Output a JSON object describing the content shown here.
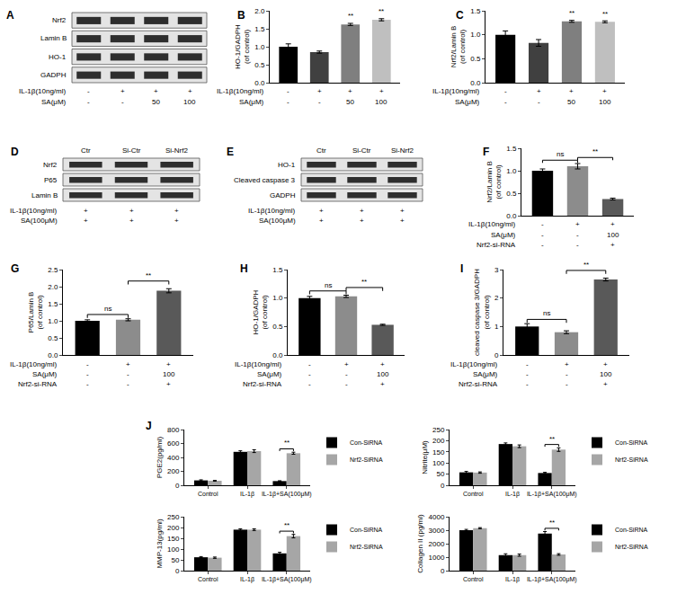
{
  "blots": [
    {
      "panel": "A",
      "rows": [
        "Nrf2",
        "Lamin B",
        "HO-1",
        "GADPH"
      ],
      "conditions": [
        {
          "label": "IL-1β(10ng/ml)",
          "values": [
            "-",
            "+",
            "+",
            "+"
          ]
        },
        {
          "label": "SA(μM)",
          "values": [
            "-",
            "-",
            "50",
            "100"
          ]
        }
      ]
    },
    {
      "panel": "D",
      "lanes": [
        "Ctr",
        "Si-Ctr",
        "Si-Nrf2"
      ],
      "rows": [
        "Nrf2",
        "P65",
        "Lamin B"
      ],
      "conditions": [
        {
          "label": "IL-1β(10ng/ml)",
          "values": [
            "+",
            "+",
            "+"
          ]
        },
        {
          "label": "SA(100μM)",
          "values": [
            "+",
            "+",
            "+"
          ]
        }
      ]
    },
    {
      "panel": "E",
      "lanes": [
        "Ctr",
        "Si-Ctr",
        "Si-Nrf2"
      ],
      "rows": [
        "HO-1",
        "Cleaved caspase 3",
        "GADPH"
      ],
      "conditions": [
        {
          "label": "IL-1β(10ng/ml)",
          "values": [
            "+",
            "+",
            "+"
          ]
        },
        {
          "label": "SA(100μM)",
          "values": [
            "+",
            "+",
            "+"
          ]
        }
      ]
    }
  ],
  "chart_data": [
    {
      "panel": "B",
      "type": "bar",
      "y_label": [
        "HO-1/GADPH",
        "(of control)"
      ],
      "categories": [
        null,
        null,
        null,
        null
      ],
      "values": [
        1.0,
        0.85,
        1.62,
        1.75
      ],
      "errors": [
        0.08,
        0.03,
        0.03,
        0.03
      ],
      "colors": [
        "#000000",
        "#404040",
        "#7f7f7f",
        "#bfbfbf"
      ],
      "ylim": [
        0,
        2
      ],
      "yticks": [
        {
          "value": 0,
          "label": "0.0"
        },
        0.5,
        {
          "value": 1,
          "label": "1.0"
        },
        1.5,
        {
          "value": 2,
          "label": "2.0"
        }
      ],
      "grid": false,
      "tick_labels": "y",
      "conditions": [
        {
          "label": "IL-1β(10ng/ml)",
          "values": [
            "-",
            "+",
            "+",
            "+"
          ]
        },
        {
          "label": "SA(μM)",
          "values": [
            "-",
            "-",
            "50",
            "100"
          ]
        }
      ],
      "significance": [
        {
          "bar": 2,
          "label": "**"
        },
        {
          "bar": 3,
          "label": "**"
        }
      ]
    },
    {
      "panel": "C",
      "type": "bar",
      "y_label": [
        "Nrf2/Lamin B",
        "(of control)"
      ],
      "categories": [
        null,
        null,
        null,
        null
      ],
      "values": [
        1.0,
        0.83,
        1.28,
        1.27
      ],
      "errors": [
        0.08,
        0.07,
        0.02,
        0.02
      ],
      "colors": [
        "#000000",
        "#404040",
        "#7f7f7f",
        "#bfbfbf"
      ],
      "ylim": [
        0,
        1.5
      ],
      "yticks": [
        {
          "value": 0,
          "label": "0.0"
        },
        0.5,
        {
          "value": 1,
          "label": "1.0"
        },
        1.5
      ],
      "grid": false,
      "tick_labels": "y",
      "conditions": [
        {
          "label": "IL-1β(10ng/ml)",
          "values": [
            "-",
            "+",
            "+",
            "+"
          ]
        },
        {
          "label": "SA(μM)",
          "values": [
            "-",
            "-",
            "50",
            "100"
          ]
        }
      ],
      "significance": [
        {
          "bar": 2,
          "label": "**"
        },
        {
          "bar": 3,
          "label": "**"
        }
      ]
    },
    {
      "panel": "F",
      "type": "bar",
      "y_label": [
        "Nrf2/Lamin B",
        "(of control)"
      ],
      "categories": [
        null,
        null,
        null
      ],
      "values": [
        1.0,
        1.1,
        0.37
      ],
      "errors": [
        0.04,
        0.06,
        0.02
      ],
      "colors": [
        "#000000",
        "#8c8c8c",
        "#595959"
      ],
      "ylim": [
        0,
        1.5
      ],
      "yticks": [
        {
          "value": 0,
          "label": "0.0"
        },
        0.5,
        {
          "value": 1,
          "label": "1.0"
        },
        1.5
      ],
      "grid": false,
      "tick_labels": "y",
      "conditions": [
        {
          "label": "IL-1β(10ng/ml)",
          "values": [
            "-",
            "+",
            "+"
          ]
        },
        {
          "label": "SA(μM)",
          "values": [
            "-",
            "-",
            "100"
          ]
        },
        {
          "label": "Nrf2-si-RNA",
          "values": [
            "-",
            "-",
            "+"
          ]
        }
      ],
      "significance": [
        {
          "from": 0,
          "to": 1,
          "label": "ns"
        },
        {
          "from": 1,
          "to": 2,
          "label": "**"
        }
      ]
    },
    {
      "panel": "G",
      "type": "bar",
      "y_label": [
        "P65/Lamin B",
        "(of control)"
      ],
      "categories": [
        null,
        null,
        null
      ],
      "values": [
        1.0,
        1.03,
        1.88
      ],
      "errors": [
        0.03,
        0.03,
        0.06
      ],
      "colors": [
        "#000000",
        "#8c8c8c",
        "#595959"
      ],
      "ylim": [
        0,
        2.5
      ],
      "yticks": [
        {
          "value": 0,
          "label": "0.0"
        },
        0.5,
        {
          "value": 1,
          "label": "1.0"
        },
        1.5,
        {
          "value": 2,
          "label": "2.0"
        },
        2.5
      ],
      "grid": false,
      "tick_labels": "y",
      "conditions": [
        {
          "label": "IL-1β(10ng/ml)",
          "values": [
            "-",
            "+",
            "+"
          ]
        },
        {
          "label": "SA(μM)",
          "values": [
            "-",
            "-",
            "100"
          ]
        },
        {
          "label": "Nrf2-si-RNA",
          "values": [
            "-",
            "-",
            "+"
          ]
        }
      ],
      "significance": [
        {
          "from": 0,
          "to": 1,
          "label": "ns"
        },
        {
          "from": 1,
          "to": 2,
          "label": "**"
        }
      ]
    },
    {
      "panel": "H",
      "type": "bar",
      "y_label": [
        "HO-1/GADPH",
        "(of control)"
      ],
      "categories": [
        null,
        null,
        null
      ],
      "values": [
        1.0,
        1.03,
        0.53
      ],
      "errors": [
        0.03,
        0.02,
        0.01
      ],
      "colors": [
        "#000000",
        "#8c8c8c",
        "#595959"
      ],
      "ylim": [
        0,
        1.5
      ],
      "yticks": [
        {
          "value": 0,
          "label": "0.0"
        },
        0.5,
        {
          "value": 1,
          "label": "1.0"
        },
        1.5
      ],
      "grid": false,
      "tick_labels": "y",
      "conditions": [
        {
          "label": "IL-1β(10ng/ml)",
          "values": [
            "-",
            "+",
            "+"
          ]
        },
        {
          "label": "SA(μM)",
          "values": [
            "-",
            "-",
            "100"
          ]
        },
        {
          "label": "Nrf2-si-RNA",
          "values": [
            "-",
            "-",
            "+"
          ]
        }
      ],
      "significance": [
        {
          "from": 0,
          "to": 1,
          "label": "ns"
        },
        {
          "from": 1,
          "to": 2,
          "label": "**"
        }
      ]
    },
    {
      "panel": "I",
      "type": "bar",
      "y_label": [
        "cleaved caspase 3/GADPH",
        "(of control)"
      ],
      "categories": [
        null,
        null,
        null
      ],
      "values": [
        1.0,
        0.8,
        2.65
      ],
      "errors": [
        0.1,
        0.05,
        0.05
      ],
      "colors": [
        "#000000",
        "#8c8c8c",
        "#595959"
      ],
      "ylim": [
        0,
        3
      ],
      "yticks": [
        0,
        1,
        2,
        3
      ],
      "grid": false,
      "tick_labels": "y",
      "conditions": [
        {
          "label": "IL-1β(10ng/ml)",
          "values": [
            "-",
            "+",
            "+"
          ]
        },
        {
          "label": "SA(μM)",
          "values": [
            "-",
            "-",
            "100"
          ]
        },
        {
          "label": "Nrf2-si-RNA",
          "values": [
            "-",
            "-",
            "+"
          ]
        }
      ],
      "significance": [
        {
          "from": 0,
          "to": 1,
          "label": "ns"
        },
        {
          "from": 1,
          "to": 2,
          "label": "**"
        }
      ]
    },
    {
      "panel": "J",
      "type": "bar",
      "y_label": [
        "PGE2(pg/ml)"
      ],
      "categories": [
        "Control",
        "IL-1β",
        "IL-1β+SA(100μM)"
      ],
      "series": [
        {
          "name": "Con-SiRNA",
          "color": "#000000",
          "values": [
            70,
            480,
            60
          ],
          "errors": [
            8,
            15,
            5
          ]
        },
        {
          "name": "Nrf2-SiRNA",
          "color": "#a6a6a6",
          "values": [
            65,
            490,
            460
          ],
          "errors": [
            6,
            20,
            15
          ]
        }
      ],
      "ylim": [
        0,
        800
      ],
      "yticks": [
        0,
        200,
        400,
        600,
        800
      ],
      "grid": false,
      "tick_labels": true,
      "legend": "upper right",
      "significance": [
        {
          "category": 2,
          "label": "**"
        }
      ]
    },
    {
      "type": "bar",
      "y_label": [
        "Nitrite(μM)"
      ],
      "categories": [
        "Control",
        "IL-1β",
        "IL-1β+SA(100μM)"
      ],
      "series": [
        {
          "name": "Con-SiRNA",
          "color": "#000000",
          "values": [
            58,
            185,
            55
          ],
          "errors": [
            4,
            5,
            3
          ]
        },
        {
          "name": "Nrf2-SiRNA",
          "color": "#a6a6a6",
          "values": [
            57,
            175,
            160
          ],
          "errors": [
            3,
            6,
            8
          ]
        }
      ],
      "ylim": [
        0,
        250
      ],
      "yticks": [
        0,
        50,
        100,
        150,
        200,
        250
      ],
      "grid": false,
      "tick_labels": true,
      "legend": "upper right",
      "significance": [
        {
          "category": 2,
          "label": "**"
        }
      ]
    },
    {
      "type": "bar",
      "y_label": [
        "MMP-13(pg/ml)"
      ],
      "categories": [
        "Control",
        "IL-1β",
        "IL-1β+SA(100μM)"
      ],
      "series": [
        {
          "name": "Con-SiRNA",
          "color": "#000000",
          "values": [
            62,
            190,
            80
          ],
          "errors": [
            3,
            4,
            5
          ]
        },
        {
          "name": "Nrf2-SiRNA",
          "color": "#a6a6a6",
          "values": [
            60,
            190,
            160
          ],
          "errors": [
            3,
            4,
            8
          ]
        }
      ],
      "ylim": [
        0,
        250
      ],
      "yticks": [
        0,
        50,
        100,
        150,
        200,
        250
      ],
      "grid": false,
      "tick_labels": true,
      "legend": "upper right",
      "significance": [
        {
          "category": 2,
          "label": "**"
        }
      ]
    },
    {
      "type": "bar",
      "y_label": [
        "Collagen II (pg/ml)"
      ],
      "categories": [
        "Control",
        "IL-1β",
        "IL-1β+SA(100μM)"
      ],
      "series": [
        {
          "name": "Con-SiRNA",
          "color": "#000000",
          "values": [
            3000,
            1150,
            2750
          ],
          "errors": [
            60,
            100,
            150
          ]
        },
        {
          "name": "Nrf2-SiRNA",
          "color": "#a6a6a6",
          "values": [
            3150,
            1150,
            1200
          ],
          "errors": [
            40,
            80,
            60
          ]
        }
      ],
      "ylim": [
        0,
        4000
      ],
      "yticks": [
        0,
        1000,
        2000,
        3000,
        4000
      ],
      "grid": false,
      "tick_labels": true,
      "legend": "upper right",
      "significance": [
        {
          "category": 2,
          "label": "**"
        }
      ]
    }
  ]
}
